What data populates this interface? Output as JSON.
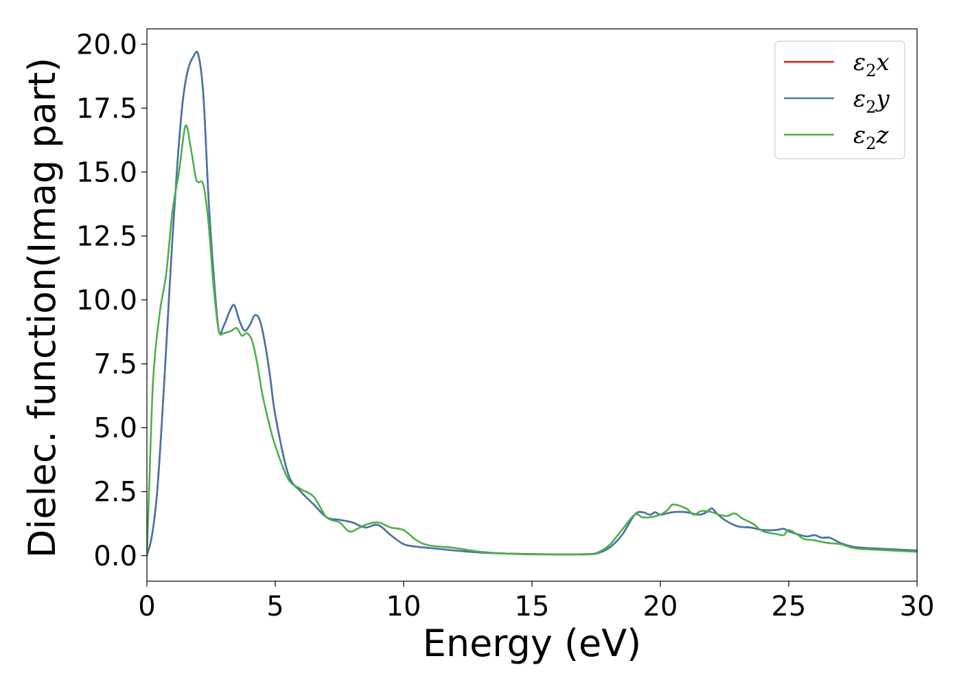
{
  "chart_data": {
    "type": "line",
    "title": "",
    "xlabel": "Energy (eV)",
    "ylabel": "Dielec. function(Imag part)",
    "xlim": [
      0,
      30
    ],
    "ylim": [
      -1.0,
      20.6
    ],
    "xticks": [
      0,
      5,
      10,
      15,
      20,
      25,
      30
    ],
    "xtick_labels": [
      "0",
      "5",
      "10",
      "15",
      "20",
      "25",
      "30"
    ],
    "yticks": [
      0.0,
      2.5,
      5.0,
      7.5,
      10.0,
      12.5,
      15.0,
      17.5,
      20.0
    ],
    "ytick_labels": [
      "0.0",
      "2.5",
      "5.0",
      "7.5",
      "10.0",
      "12.5",
      "15.0",
      "17.5",
      "20.0"
    ],
    "grid": false,
    "legend_position": "top-right",
    "series": [
      {
        "name": "ε₂x",
        "legend_base": "ε",
        "legend_sub": "2",
        "legend_suffix": "x",
        "color": "#e41a1c",
        "x": [
          0,
          0.2,
          0.4,
          0.6,
          0.8,
          1.0,
          1.2,
          1.4,
          1.6,
          1.8,
          2.0,
          2.2,
          2.4,
          2.6,
          2.8,
          3.0,
          3.2,
          3.4,
          3.6,
          3.8,
          4.0,
          4.2,
          4.4,
          4.6,
          4.8,
          5.0,
          5.5,
          6.0,
          6.5,
          7.0,
          7.5,
          8.0,
          8.5,
          9.0,
          9.5,
          10.0,
          10.5,
          11.0,
          12.0,
          13.0,
          14.0,
          15.0,
          16.0,
          17.0,
          17.5,
          18.0,
          18.5,
          19.0,
          19.3,
          19.6,
          19.8,
          20.0,
          20.5,
          21.0,
          21.5,
          21.8,
          22.0,
          22.2,
          22.5,
          23.0,
          23.5,
          24.0,
          24.5,
          24.8,
          25.0,
          25.3,
          25.7,
          26.0,
          26.3,
          26.6,
          27.0,
          27.5,
          28.0,
          29.0,
          30.0
        ],
        "y": [
          0.0,
          0.8,
          2.5,
          5.5,
          9.0,
          12.5,
          15.5,
          17.8,
          19.0,
          19.5,
          19.6,
          18.0,
          14.0,
          11.0,
          8.8,
          9.0,
          9.5,
          9.8,
          9.2,
          8.8,
          9.0,
          9.4,
          9.2,
          8.3,
          7.0,
          5.5,
          3.2,
          2.5,
          2.0,
          1.5,
          1.4,
          1.3,
          1.1,
          1.2,
          0.8,
          0.45,
          0.35,
          0.3,
          0.2,
          0.12,
          0.08,
          0.06,
          0.05,
          0.05,
          0.08,
          0.3,
          0.8,
          1.6,
          1.7,
          1.6,
          1.7,
          1.6,
          1.7,
          1.7,
          1.6,
          1.7,
          1.85,
          1.65,
          1.4,
          1.15,
          1.1,
          1.0,
          1.0,
          1.05,
          0.95,
          0.85,
          0.75,
          0.8,
          0.7,
          0.7,
          0.5,
          0.35,
          0.3,
          0.25,
          0.2
        ]
      },
      {
        "name": "ε₂y",
        "legend_base": "ε",
        "legend_sub": "2",
        "legend_suffix": "y",
        "color": "#4477aa",
        "x": [
          0,
          0.2,
          0.4,
          0.6,
          0.8,
          1.0,
          1.2,
          1.4,
          1.6,
          1.8,
          2.0,
          2.2,
          2.4,
          2.6,
          2.8,
          3.0,
          3.2,
          3.4,
          3.6,
          3.8,
          4.0,
          4.2,
          4.4,
          4.6,
          4.8,
          5.0,
          5.5,
          6.0,
          6.5,
          7.0,
          7.5,
          8.0,
          8.5,
          9.0,
          9.5,
          10.0,
          10.5,
          11.0,
          12.0,
          13.0,
          14.0,
          15.0,
          16.0,
          17.0,
          17.5,
          18.0,
          18.5,
          19.0,
          19.3,
          19.6,
          19.8,
          20.0,
          20.5,
          21.0,
          21.5,
          21.8,
          22.0,
          22.2,
          22.5,
          23.0,
          23.5,
          24.0,
          24.5,
          24.8,
          25.0,
          25.3,
          25.7,
          26.0,
          26.3,
          26.6,
          27.0,
          27.5,
          28.0,
          29.0,
          30.0
        ],
        "y": [
          0.0,
          0.8,
          2.5,
          5.5,
          9.0,
          12.5,
          15.5,
          17.8,
          19.0,
          19.5,
          19.6,
          18.0,
          14.0,
          11.0,
          8.8,
          9.0,
          9.5,
          9.8,
          9.2,
          8.8,
          9.0,
          9.4,
          9.2,
          8.3,
          7.0,
          5.5,
          3.2,
          2.5,
          2.0,
          1.5,
          1.4,
          1.3,
          1.1,
          1.2,
          0.8,
          0.45,
          0.35,
          0.3,
          0.2,
          0.12,
          0.08,
          0.06,
          0.05,
          0.05,
          0.08,
          0.3,
          0.8,
          1.6,
          1.7,
          1.6,
          1.7,
          1.6,
          1.7,
          1.7,
          1.6,
          1.7,
          1.85,
          1.65,
          1.4,
          1.15,
          1.1,
          1.0,
          1.0,
          1.05,
          0.95,
          0.85,
          0.75,
          0.8,
          0.7,
          0.7,
          0.5,
          0.35,
          0.3,
          0.25,
          0.2
        ]
      },
      {
        "name": "ε₂z",
        "legend_base": "ε",
        "legend_sub": "2",
        "legend_suffix": "z",
        "color": "#4daf4a",
        "x": [
          0,
          0.1,
          0.25,
          0.5,
          0.75,
          1.0,
          1.25,
          1.5,
          1.7,
          1.9,
          2.0,
          2.2,
          2.4,
          2.6,
          2.8,
          3.0,
          3.3,
          3.5,
          3.7,
          3.9,
          4.1,
          4.3,
          4.5,
          4.8,
          5.0,
          5.5,
          6.0,
          6.5,
          7.0,
          7.5,
          7.8,
          8.0,
          8.5,
          9.0,
          9.5,
          10.0,
          10.5,
          11.0,
          12.0,
          13.0,
          14.0,
          15.0,
          16.0,
          17.0,
          17.5,
          18.0,
          18.5,
          19.0,
          19.3,
          19.6,
          20.0,
          20.3,
          20.5,
          21.0,
          21.3,
          21.6,
          22.0,
          22.3,
          22.6,
          22.9,
          23.2,
          23.6,
          24.0,
          24.5,
          24.8,
          25.0,
          25.3,
          25.6,
          26.0,
          26.5,
          27.0,
          27.5,
          28.0,
          29.0,
          30.0
        ],
        "y": [
          0.0,
          3.0,
          7.0,
          9.5,
          11.0,
          13.5,
          15.0,
          16.8,
          16.0,
          14.8,
          14.6,
          14.5,
          13.0,
          10.5,
          8.8,
          8.7,
          8.8,
          8.9,
          8.6,
          8.7,
          8.4,
          7.5,
          6.3,
          5.0,
          4.3,
          3.0,
          2.6,
          2.3,
          1.5,
          1.3,
          1.0,
          0.95,
          1.2,
          1.3,
          1.1,
          1.0,
          0.6,
          0.4,
          0.3,
          0.15,
          0.08,
          0.05,
          0.05,
          0.06,
          0.1,
          0.4,
          1.0,
          1.6,
          1.5,
          1.5,
          1.6,
          1.8,
          2.0,
          1.85,
          1.6,
          1.75,
          1.7,
          1.6,
          1.55,
          1.65,
          1.45,
          1.25,
          0.95,
          0.85,
          0.8,
          1.0,
          0.85,
          0.65,
          0.6,
          0.5,
          0.45,
          0.3,
          0.25,
          0.2,
          0.15
        ]
      }
    ]
  }
}
